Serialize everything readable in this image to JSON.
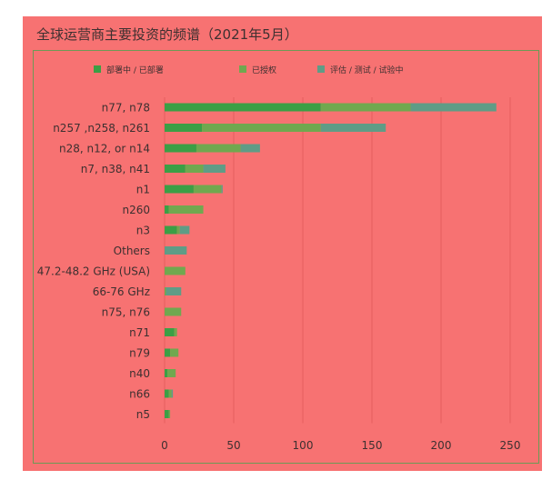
{
  "colors": {
    "background": "#f77272",
    "grid": "#e45f5f",
    "text": "#3d3030",
    "series": [
      "#3b9f45",
      "#70a84f",
      "#5f9c86"
    ]
  },
  "chart_data": {
    "type": "bar",
    "orientation": "horizontal",
    "stacked": true,
    "title": "全球运营商主要投资的频谱（2021年5月）",
    "xlabel": "",
    "ylabel": "",
    "xlim": [
      0,
      250
    ],
    "xticks": [
      0,
      50,
      100,
      150,
      200,
      250
    ],
    "grid": "vertical",
    "legend_position": "top",
    "categories": [
      "n77, n78",
      "n257 ,n258, n261",
      "n28, n12, or n14",
      "n7, n38, n41",
      "n1",
      "n260",
      "n3",
      "Others",
      "47.2-48.2 GHz (USA)",
      "66-76 GHz",
      "n75, n76",
      "n71",
      "n79",
      "n40",
      "n66",
      "n5"
    ],
    "series": [
      {
        "name": "部署中 / 已部署",
        "values": [
          113,
          27,
          23,
          15,
          21,
          3,
          9,
          0,
          0,
          0,
          0,
          7,
          4,
          2,
          3,
          3
        ]
      },
      {
        "name": "已授权",
        "values": [
          65,
          86,
          32,
          13,
          20,
          25,
          2,
          0,
          15,
          1,
          12,
          2,
          6,
          6,
          2,
          1
        ]
      },
      {
        "name": "评估 / 测试 / 试验中",
        "values": [
          62,
          47,
          14,
          16,
          1,
          0,
          7,
          16,
          0,
          11,
          0,
          0,
          0,
          0,
          1,
          0
        ]
      }
    ]
  }
}
